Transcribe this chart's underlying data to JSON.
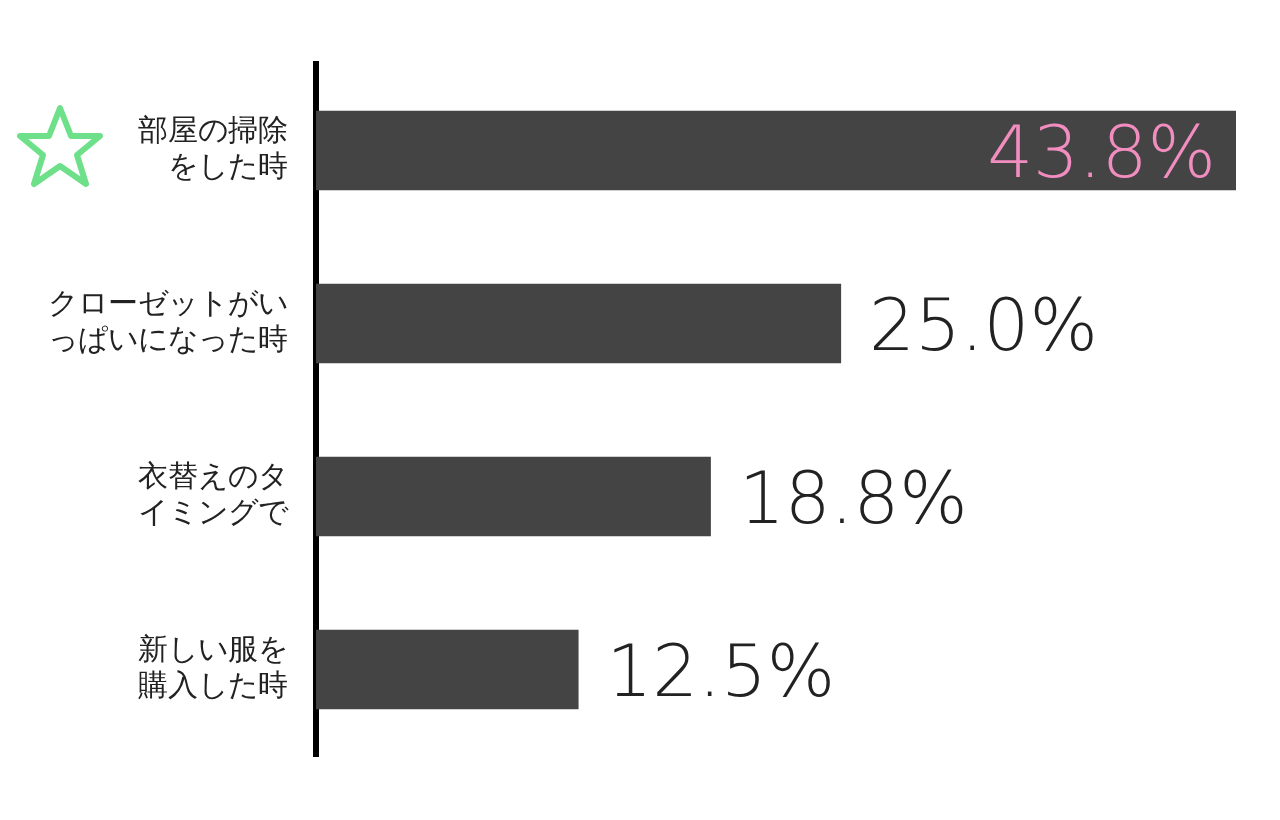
{
  "chart_data": {
    "type": "bar",
    "orientation": "horizontal",
    "categories": [
      "部屋の掃除をした時",
      "クローゼットがいっぱいになった時",
      "衣替えのタイミングで",
      "新しい服を購入した時"
    ],
    "values": [
      43.8,
      25.0,
      18.8,
      12.5
    ],
    "value_labels": [
      "43.8%",
      "25.0%",
      "18.8%",
      "12.5%"
    ],
    "color": "#444444",
    "grid": false,
    "legend": false
  }
}
